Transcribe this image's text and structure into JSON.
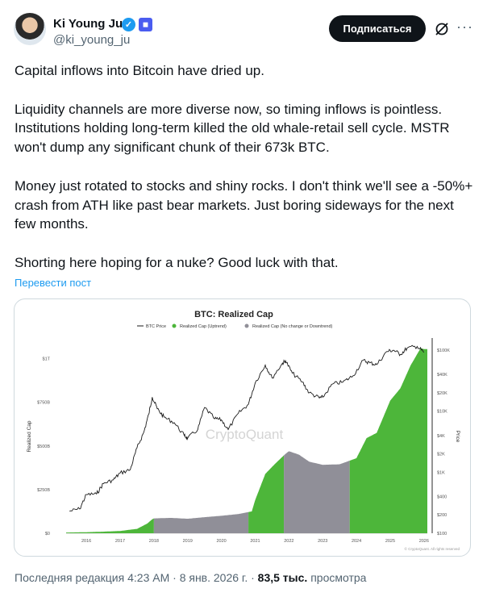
{
  "author": {
    "name": "Ki Young Ju",
    "handle": "@ki_young_ju",
    "verified_icon": "verified-badge-icon",
    "org_icon": "org-affiliation-icon"
  },
  "actions": {
    "subscribe_label": "Подписаться",
    "grok_icon": "grok-icon",
    "more_icon": "more-icon"
  },
  "tweet": {
    "paragraphs": [
      "Capital inflows into Bitcoin have dried up.",
      "Liquidity channels are more diverse now, so timing inflows is pointless. Institutions holding long-term killed the old whale-retail sell cycle. MSTR won't dump any significant chunk of their 673k BTC.",
      "Money just rotated to stocks and shiny rocks. I don't think we'll see a -50%+ crash from ATH like past bear markets. Just boring sideways for the next few months.",
      "Shorting here hoping for a nuke? Good luck with that."
    ],
    "translate_label": "Перевести пост"
  },
  "colors": {
    "uptrend": "#4db63a",
    "downtrend": "#908f98",
    "price": "#1a1a1a",
    "link": "#1d9bf0"
  },
  "chart_data": {
    "type": "area",
    "title": "BTC: Realized Cap",
    "legend": [
      "BTC Price",
      "Realized Cap (Uptrend)",
      "Realized Cap (No change or Downtrend)"
    ],
    "legend_position": "top",
    "watermark": "CryptoQuant",
    "credit": "© CryptoQuant. All rights reserved",
    "ylabel_left": "Realized Cap",
    "ylabel_right": "Price",
    "x_ticks": [
      "2016",
      "2017",
      "2018",
      "2019",
      "2020",
      "2021",
      "2022",
      "2023",
      "2024",
      "2025",
      "2026"
    ],
    "y_ticks_left": [
      "$0",
      "$250B",
      "$500B",
      "$750B",
      "$1T"
    ],
    "y_ticks_right": [
      "$100",
      "$200",
      "$400",
      "$1K",
      "$2K",
      "$4K",
      "$10K",
      "$20K",
      "$40K",
      "$100K"
    ],
    "ylim_left": [
      0,
      1100000000000
    ],
    "ylim_right_log": [
      100,
      140000
    ],
    "x_range": [
      2015.4,
      2026.1
    ],
    "realized_cap": {
      "x": [
        2015.4,
        2016.0,
        2016.5,
        2017.0,
        2017.5,
        2017.8,
        2017.95,
        2018.0,
        2018.5,
        2019.0,
        2019.5,
        2020.0,
        2020.5,
        2020.9,
        2021.0,
        2021.3,
        2021.6,
        2021.9,
        2022.0,
        2022.3,
        2022.6,
        2023.0,
        2023.5,
        2024.0,
        2024.3,
        2024.6,
        2025.0,
        2025.3,
        2025.6,
        2025.9,
        2026.0
      ],
      "values": [
        4000000000.0,
        6000000000.0,
        9000000000.0,
        13000000000.0,
        25000000000.0,
        55000000000.0,
        80000000000.0,
        85000000000.0,
        88000000000.0,
        83000000000.0,
        92000000000.0,
        100000000000.0,
        110000000000.0,
        125000000000.0,
        190000000000.0,
        340000000000.0,
        400000000000.0,
        455000000000.0,
        470000000000.0,
        450000000000.0,
        410000000000.0,
        392000000000.0,
        395000000000.0,
        430000000000.0,
        545000000000.0,
        575000000000.0,
        760000000000.0,
        830000000000.0,
        960000000000.0,
        1060000000000.0,
        1055000000000.0
      ]
    },
    "segments": [
      {
        "from": 2015.4,
        "to": 2018.0,
        "trend": "uptrend"
      },
      {
        "from": 2018.0,
        "to": 2020.8,
        "trend": "downtrend"
      },
      {
        "from": 2020.8,
        "to": 2021.85,
        "trend": "uptrend"
      },
      {
        "from": 2021.85,
        "to": 2023.8,
        "trend": "downtrend"
      },
      {
        "from": 2023.8,
        "to": 2026.1,
        "trend": "uptrend"
      }
    ],
    "price": {
      "x": [
        2015.5,
        2015.8,
        2016.0,
        2016.3,
        2016.5,
        2016.8,
        2017.0,
        2017.3,
        2017.5,
        2017.7,
        2017.85,
        2017.95,
        2018.1,
        2018.3,
        2018.6,
        2018.9,
        2019.0,
        2019.3,
        2019.5,
        2019.8,
        2020.0,
        2020.2,
        2020.5,
        2020.8,
        2021.0,
        2021.3,
        2021.5,
        2021.8,
        2021.9,
        2022.1,
        2022.4,
        2022.6,
        2022.9,
        2023.0,
        2023.3,
        2023.6,
        2023.9,
        2024.2,
        2024.4,
        2024.6,
        2024.9,
        2025.1,
        2025.3,
        2025.5,
        2025.8,
        2026.0
      ],
      "values": [
        230,
        250,
        430,
        440,
        650,
        750,
        970,
        1100,
        2500,
        4500,
        9000,
        17000,
        11000,
        8000,
        6500,
        4000,
        3600,
        5000,
        11500,
        7500,
        7200,
        5000,
        9200,
        13000,
        29000,
        57000,
        35000,
        60000,
        67000,
        42000,
        30000,
        20000,
        16500,
        17000,
        28000,
        30000,
        38000,
        68000,
        62000,
        58000,
        95000,
        100000,
        85000,
        108000,
        115000,
        92000
      ]
    }
  },
  "footer": {
    "edited_label": "Последняя редакция",
    "timestamp": "4:23 AM · 8 янв. 2026 г.",
    "separator": "·",
    "views_count": "83,5 тыс.",
    "views_label": "просмотра"
  }
}
